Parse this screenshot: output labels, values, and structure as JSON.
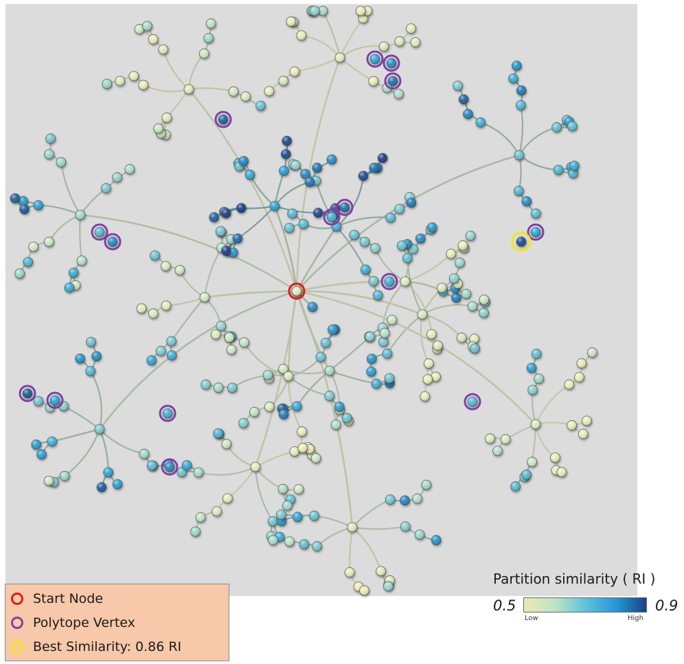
{
  "colors": {
    "colormap": [
      "#ece9b6",
      "#cde6c2",
      "#7ec9cf",
      "#2aa3d6",
      "#1f6fae",
      "#1b3d83"
    ],
    "start_ring": "#e01a1a",
    "vertex_ring": "#7e3fa6",
    "best_ring": "#f2e610",
    "edge_low": "#c9c9a8",
    "edge_high": "#5d8d96",
    "background_panel": "#dcdcdc",
    "legend_bg": "#f7c8a9"
  },
  "legend": {
    "start": "Start Node",
    "vertex": "Polytope Vertex",
    "best": "Best Similarity: 0.86 RI"
  },
  "colorbar": {
    "title": "Partition similarity ( RI )",
    "min_value": "0.5",
    "max_value": "0.9",
    "low_label": "Low",
    "high_label": "High"
  }
}
